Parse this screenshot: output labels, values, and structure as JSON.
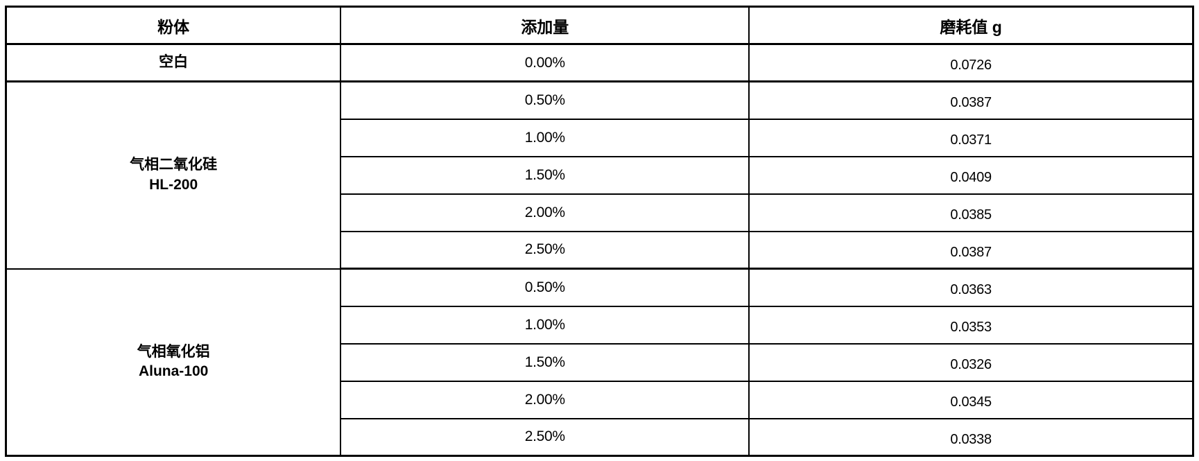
{
  "colors": {
    "border": "#000000",
    "text": "#000000",
    "background": "#ffffff"
  },
  "table": {
    "columns": [
      "粉体",
      "添加量",
      "磨耗值 g"
    ],
    "groups": [
      {
        "powder": "空白",
        "rows": [
          {
            "amount": "0.00%",
            "wear": "0.0726"
          }
        ]
      },
      {
        "powder": "气相二氧化硅",
        "powder_line2": "HL-200",
        "rows": [
          {
            "amount": "0.50%",
            "wear": "0.0387"
          },
          {
            "amount": "1.00%",
            "wear": "0.0371"
          },
          {
            "amount": "1.50%",
            "wear": "0.0409"
          },
          {
            "amount": "2.00%",
            "wear": "0.0385"
          },
          {
            "amount": "2.50%",
            "wear": "0.0387"
          }
        ]
      },
      {
        "powder": "气相氧化铝",
        "powder_line2": "Aluna-100",
        "rows": [
          {
            "amount": "0.50%",
            "wear": "0.0363"
          },
          {
            "amount": "1.00%",
            "wear": "0.0353"
          },
          {
            "amount": "1.50%",
            "wear": "0.0326"
          },
          {
            "amount": "2.00%",
            "wear": "0.0345"
          },
          {
            "amount": "2.50%",
            "wear": "0.0338"
          }
        ]
      }
    ]
  },
  "chart_data": {
    "type": "table",
    "columns": [
      "粉体",
      "添加量",
      "磨耗值 g"
    ],
    "rows": [
      [
        "空白",
        "0.00%",
        0.0726
      ],
      [
        "气相二氧化硅 HL-200",
        "0.50%",
        0.0387
      ],
      [
        "气相二氧化硅 HL-200",
        "1.00%",
        0.0371
      ],
      [
        "气相二氧化硅 HL-200",
        "1.50%",
        0.0409
      ],
      [
        "气相二氧化硅 HL-200",
        "2.00%",
        0.0385
      ],
      [
        "气相二氧化硅 HL-200",
        "2.50%",
        0.0387
      ],
      [
        "气相氧化铝 Aluna-100",
        "0.50%",
        0.0363
      ],
      [
        "气相氧化铝 Aluna-100",
        "1.00%",
        0.0353
      ],
      [
        "气相氧化铝 Aluna-100",
        "1.50%",
        0.0326
      ],
      [
        "气相氧化铝 Aluna-100",
        "2.00%",
        0.0345
      ],
      [
        "气相氧化铝 Aluna-100",
        "2.50%",
        0.0338
      ]
    ]
  }
}
